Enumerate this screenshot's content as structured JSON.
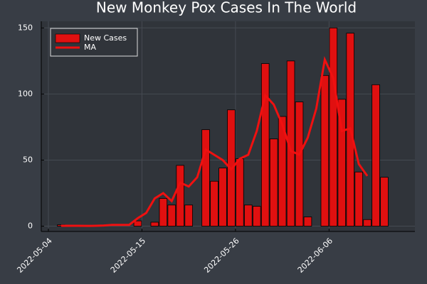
{
  "chart_data": {
    "type": "bar",
    "title": "New Monkey Pox Cases In The World",
    "x": [
      "2022-05-05",
      "2022-05-06",
      "2022-05-07",
      "2022-05-08",
      "2022-05-09",
      "2022-05-10",
      "2022-05-11",
      "2022-05-12",
      "2022-05-13",
      "2022-05-14",
      "2022-05-15",
      "2022-05-16",
      "2022-05-17",
      "2022-05-18",
      "2022-05-19",
      "2022-05-20",
      "2022-05-21",
      "2022-05-22",
      "2022-05-23",
      "2022-05-24",
      "2022-05-25",
      "2022-05-26",
      "2022-05-27",
      "2022-05-28",
      "2022-05-29",
      "2022-05-30",
      "2022-05-31",
      "2022-06-01",
      "2022-06-02",
      "2022-06-03",
      "2022-06-04",
      "2022-06-05",
      "2022-06-06",
      "2022-06-07",
      "2022-06-08",
      "2022-06-09",
      "2022-06-10",
      "2022-06-11",
      "2022-06-12"
    ],
    "series": [
      {
        "name": "New Cases",
        "color": "#e01010",
        "values": [
          1,
          0,
          0,
          0,
          0,
          0,
          0,
          0,
          0,
          4,
          0,
          3,
          21,
          16,
          46,
          16,
          0,
          73,
          34,
          44,
          88,
          51,
          16,
          15,
          123,
          66,
          83,
          125,
          94,
          7,
          0,
          114,
          150,
          96,
          146,
          41,
          5,
          107,
          37
        ]
      },
      {
        "name": "MA",
        "color": "#f01010",
        "type": "line",
        "values": [
          0.3,
          0.3,
          0.3,
          0.2,
          0.3,
          0.5,
          1,
          1,
          1,
          6,
          10,
          21,
          25,
          19,
          33,
          30,
          37,
          58,
          54,
          50,
          43,
          51,
          54,
          72,
          99,
          92,
          77,
          57,
          54,
          67,
          89,
          126,
          112,
          72,
          74,
          47,
          38,
          null,
          null
        ]
      }
    ],
    "xticks": [
      "2022-05-04",
      "2022-05-15",
      "2022-05-26",
      "2022-06-06"
    ],
    "ylim": [
      -4,
      155
    ],
    "yticks": [
      0,
      50,
      100,
      150
    ],
    "legend": "upper left"
  }
}
